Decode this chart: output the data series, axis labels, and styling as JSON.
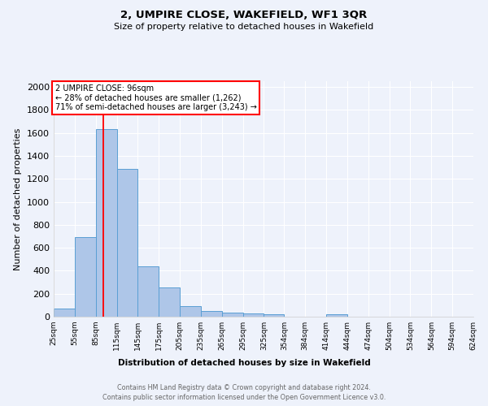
{
  "title": "2, UMPIRE CLOSE, WAKEFIELD, WF1 3QR",
  "subtitle": "Size of property relative to detached houses in Wakefield",
  "xlabel": "Distribution of detached houses by size in Wakefield",
  "ylabel": "Number of detached properties",
  "bar_color": "#aec6e8",
  "bar_edge_color": "#5a9fd4",
  "red_line_x": 96,
  "annotation_title": "2 UMPIRE CLOSE: 96sqm",
  "annotation_line2": "← 28% of detached houses are smaller (1,262)",
  "annotation_line3": "71% of semi-detached houses are larger (3,243) →",
  "footer_line1": "Contains HM Land Registry data © Crown copyright and database right 2024.",
  "footer_line2": "Contains public sector information licensed under the Open Government Licence v3.0.",
  "bin_edges": [
    25,
    55,
    85,
    115,
    145,
    175,
    205,
    235,
    265,
    295,
    325,
    354,
    384,
    414,
    444,
    474,
    504,
    534,
    564,
    594,
    624
  ],
  "bin_labels": [
    "25sqm",
    "55sqm",
    "85sqm",
    "115sqm",
    "145sqm",
    "175sqm",
    "205sqm",
    "235sqm",
    "265sqm",
    "295sqm",
    "325sqm",
    "354sqm",
    "384sqm",
    "414sqm",
    "444sqm",
    "474sqm",
    "504sqm",
    "534sqm",
    "564sqm",
    "594sqm",
    "624sqm"
  ],
  "bar_heights": [
    70,
    695,
    1635,
    1285,
    438,
    253,
    95,
    50,
    35,
    28,
    18,
    0,
    0,
    18,
    0,
    0,
    0,
    0,
    0,
    0
  ],
  "ylim": [
    0,
    2050
  ],
  "yticks": [
    0,
    200,
    400,
    600,
    800,
    1000,
    1200,
    1400,
    1600,
    1800,
    2000
  ],
  "background_color": "#eef2fb",
  "grid_color": "#ffffff"
}
